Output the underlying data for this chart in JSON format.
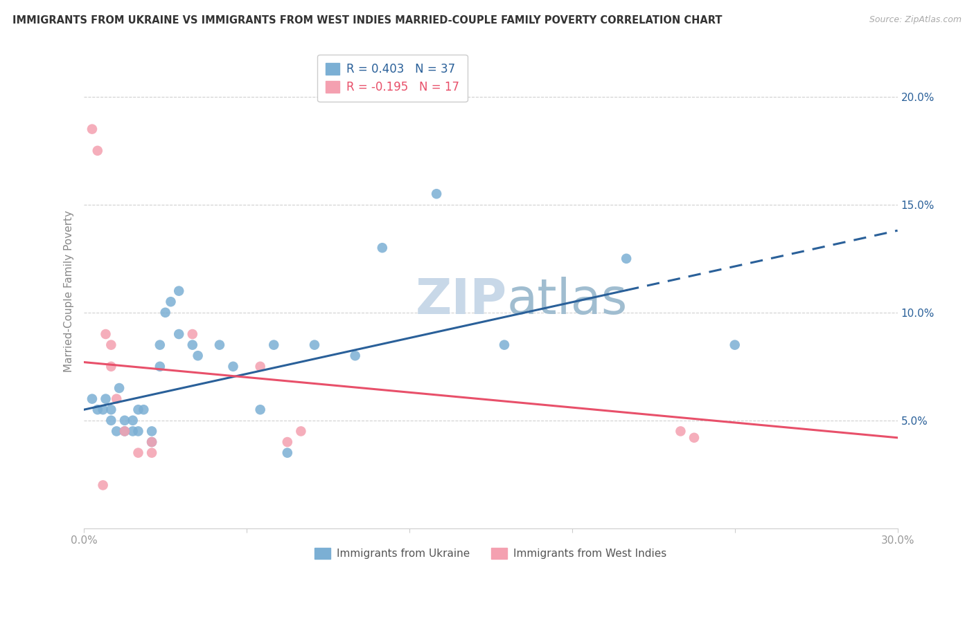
{
  "title": "IMMIGRANTS FROM UKRAINE VS IMMIGRANTS FROM WEST INDIES MARRIED-COUPLE FAMILY POVERTY CORRELATION CHART",
  "source": "Source: ZipAtlas.com",
  "ylabel": "Married-Couple Family Poverty",
  "ytick_labels": [
    "5.0%",
    "10.0%",
    "15.0%",
    "20.0%"
  ],
  "ytick_values": [
    5.0,
    10.0,
    15.0,
    20.0
  ],
  "xlim": [
    0.0,
    30.0
  ],
  "ylim": [
    0.0,
    22.0
  ],
  "blue_label": "Immigrants from Ukraine",
  "pink_label": "Immigrants from West Indies",
  "blue_R": "0.403",
  "blue_N": "37",
  "pink_R": "-0.195",
  "pink_N": "17",
  "blue_color": "#7bafd4",
  "pink_color": "#f4a0b0",
  "blue_line_color": "#2a6099",
  "pink_line_color": "#e8506a",
  "background_color": "#ffffff",
  "watermark_text": "ZIP",
  "watermark_text2": "atlas",
  "blue_points_x": [
    0.3,
    0.5,
    0.7,
    0.8,
    1.0,
    1.0,
    1.2,
    1.3,
    1.5,
    1.5,
    1.8,
    1.8,
    2.0,
    2.0,
    2.2,
    2.5,
    2.5,
    2.8,
    2.8,
    3.0,
    3.2,
    3.5,
    3.5,
    4.0,
    4.2,
    5.0,
    5.5,
    6.5,
    7.0,
    7.5,
    8.5,
    10.0,
    11.0,
    13.0,
    15.5,
    20.0,
    24.0
  ],
  "blue_points_y": [
    6.0,
    5.5,
    5.5,
    6.0,
    5.5,
    5.0,
    4.5,
    6.5,
    4.5,
    5.0,
    4.5,
    5.0,
    5.5,
    4.5,
    5.5,
    4.5,
    4.0,
    7.5,
    8.5,
    10.0,
    10.5,
    11.0,
    9.0,
    8.5,
    8.0,
    8.5,
    7.5,
    5.5,
    8.5,
    3.5,
    8.5,
    8.0,
    13.0,
    15.5,
    8.5,
    12.5,
    8.5
  ],
  "pink_points_x": [
    0.3,
    0.5,
    0.8,
    1.0,
    1.0,
    1.2,
    1.5,
    2.0,
    2.5,
    2.5,
    4.0,
    6.5,
    7.5,
    8.0,
    22.0,
    22.5,
    0.7
  ],
  "pink_points_y": [
    18.5,
    17.5,
    9.0,
    8.5,
    7.5,
    6.0,
    4.5,
    3.5,
    3.5,
    4.0,
    9.0,
    7.5,
    4.0,
    4.5,
    4.5,
    4.2,
    2.0
  ],
  "blue_line_x0": 0.0,
  "blue_line_y0": 5.5,
  "blue_line_x1": 30.0,
  "blue_line_y1": 13.8,
  "blue_solid_end": 20.0,
  "pink_line_x0": 0.0,
  "pink_line_y0": 7.7,
  "pink_line_x1": 30.0,
  "pink_line_y1": 4.2
}
